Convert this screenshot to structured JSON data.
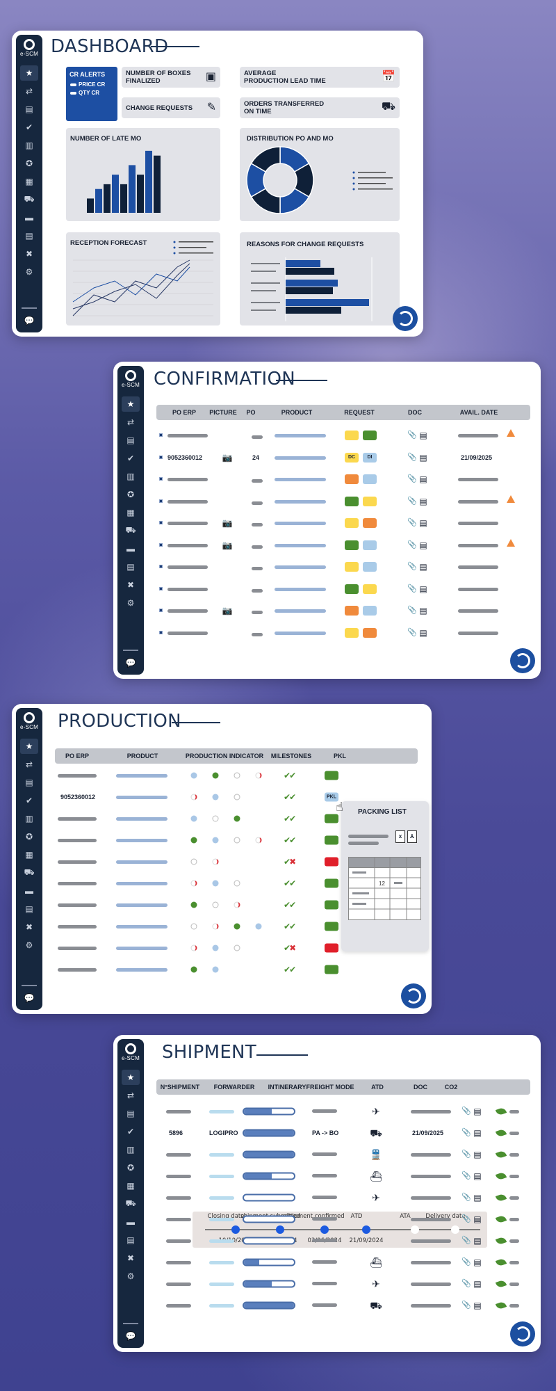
{
  "brand": {
    "logo_text": "e-SCM"
  },
  "dashboard": {
    "title": "DASHBOARD",
    "cr_alerts": {
      "title": "CR ALERTS",
      "items": [
        "PRICE CR",
        "QTY CR"
      ]
    },
    "kpis": [
      {
        "label": "NUMBER OF BOXES\nFINALIZED",
        "icon": "boxes-icon"
      },
      {
        "label": "AVERAGE\nPRODUCTION LEAD TIME",
        "icon": "calendar-clock-icon"
      },
      {
        "label": "CHANGE REQUESTS",
        "icon": "edit-icon"
      },
      {
        "label": "ORDERS TRANSFERRED\nON TIME",
        "icon": "delivery-truck-icon"
      }
    ],
    "charts": {
      "late_mo": {
        "title": "NUMBER OF LATE MO",
        "type": "bar",
        "values": [
          3,
          5,
          6,
          8,
          6,
          10,
          8,
          13,
          12
        ],
        "colors": [
          "#0f2038",
          "#1d4fa3"
        ]
      },
      "distribution": {
        "title": "DISTRIBUTION PO AND MO",
        "type": "pie",
        "slices": [
          1,
          1,
          1,
          1,
          1,
          1
        ],
        "colors": [
          "#1d4fa3",
          "#0f2038"
        ]
      },
      "reception": {
        "title": "RECEPTION FORECAST",
        "type": "line"
      },
      "reasons": {
        "title": "REASONS FOR CHANGE REQUESTS",
        "type": "bar",
        "values": [
          [
            50,
            70
          ],
          [
            75,
            68
          ],
          [
            120,
            80
          ]
        ]
      }
    }
  },
  "confirmation": {
    "title": "CONFIRMATION",
    "columns": [
      "PO ERP",
      "PICTURE",
      "PO",
      "PRODUCT",
      "REQUEST",
      "DOC",
      "AVAIL. DATE"
    ],
    "rows": [
      {
        "po_erp": "",
        "picture": false,
        "po": "",
        "request": [
          "#fbd84e",
          "#4a8f2f"
        ],
        "alert": true
      },
      {
        "po_erp": "9052360012",
        "picture": true,
        "po": "24",
        "request_labels": [
          "DC",
          "DI"
        ],
        "request": [
          "#fbd84e",
          "#a9cbe8"
        ],
        "avail": "21/09/2025",
        "alert": false
      },
      {
        "po_erp": "",
        "picture": false,
        "po": "",
        "request": [
          "#f08a3c",
          "#a9cbe8"
        ],
        "alert": false
      },
      {
        "po_erp": "",
        "picture": false,
        "po": "",
        "request": [
          "#4a8f2f",
          "#fbd84e"
        ],
        "alert": true
      },
      {
        "po_erp": "",
        "picture": true,
        "po": "",
        "request": [
          "#fbd84e",
          "#f08a3c"
        ],
        "alert": false
      },
      {
        "po_erp": "",
        "picture": true,
        "po": "",
        "request": [
          "#4a8f2f",
          "#a9cbe8"
        ],
        "alert": true
      },
      {
        "po_erp": "",
        "picture": false,
        "po": "",
        "request": [
          "#fbd84e",
          "#a9cbe8"
        ],
        "alert": false
      },
      {
        "po_erp": "",
        "picture": false,
        "po": "",
        "request": [
          "#4a8f2f",
          "#fbd84e"
        ],
        "alert": false
      },
      {
        "po_erp": "",
        "picture": true,
        "po": "",
        "request": [
          "#f08a3c",
          "#a9cbe8"
        ],
        "alert": false
      },
      {
        "po_erp": "",
        "picture": false,
        "po": "",
        "request": [
          "#fbd84e",
          "#f08a3c"
        ],
        "alert": false
      }
    ]
  },
  "production": {
    "title": "PRODUCTION",
    "columns": [
      "PO ERP",
      "PRODUCT",
      "PRODUCTION INDICATOR",
      "MILESTONES",
      "PKL"
    ],
    "rows": [
      {
        "po_erp": "",
        "dots": [
          "b",
          "g",
          "w",
          "r"
        ],
        "milestones": [
          "ok",
          "ok"
        ],
        "pkl": "green"
      },
      {
        "po_erp": "9052360012",
        "dots": [
          "r",
          "b",
          "w"
        ],
        "milestones": [
          "ok",
          "ok"
        ],
        "pkl": "active",
        "pkl_label": "PKL"
      },
      {
        "po_erp": "",
        "dots": [
          "b",
          "w",
          "g"
        ],
        "milestones": [
          "ok",
          "ok"
        ],
        "pkl": "green"
      },
      {
        "po_erp": "",
        "dots": [
          "g",
          "b",
          "w",
          "r"
        ],
        "milestones": [
          "ok",
          "ok"
        ],
        "pkl": "green"
      },
      {
        "po_erp": "",
        "dots": [
          "w",
          "r"
        ],
        "milestones": [
          "ok",
          "ko"
        ],
        "pkl": "red"
      },
      {
        "po_erp": "",
        "dots": [
          "r",
          "b",
          "w"
        ],
        "milestones": [
          "ok",
          "ok"
        ],
        "pkl": "green"
      },
      {
        "po_erp": "",
        "dots": [
          "g",
          "w",
          "r"
        ],
        "milestones": [
          "ok",
          "ok"
        ],
        "pkl": "green"
      },
      {
        "po_erp": "",
        "dots": [
          "w",
          "r",
          "g",
          "b"
        ],
        "milestones": [
          "ok",
          "ok"
        ],
        "pkl": "green"
      },
      {
        "po_erp": "",
        "dots": [
          "r",
          "b",
          "w"
        ],
        "milestones": [
          "ok",
          "ko"
        ],
        "pkl": "red"
      },
      {
        "po_erp": "",
        "dots": [
          "g",
          "b"
        ],
        "milestones": [
          "ok",
          "ok"
        ],
        "pkl": "green"
      }
    ],
    "packing_list": {
      "title": "PACKING LIST",
      "cell_value": "12"
    }
  },
  "shipment": {
    "title": "SHIPMENT",
    "columns": [
      "N°SHIPMENT",
      "FORWARDER",
      "INTINERARY",
      "FREIGHT MODE",
      "ATD",
      "DOC",
      "CO2"
    ],
    "rows": [
      {
        "shipment": "",
        "forwarder": "",
        "progress": 0.55,
        "itinerary": "",
        "mode": "✈",
        "atd": ""
      },
      {
        "shipment": "5896",
        "forwarder": "LOGIPRO",
        "progress": 1.0,
        "itinerary": "PA -> BO",
        "mode": "⛟",
        "atd": "21/09/2025"
      },
      {
        "shipment": "",
        "forwarder": "",
        "progress": 1.0,
        "itinerary": "",
        "mode": "🚆",
        "atd": ""
      },
      {
        "shipment": "",
        "forwarder": "",
        "progress": 0.55,
        "itinerary": "",
        "mode": "⛴",
        "atd": ""
      },
      {
        "shipment": "",
        "forwarder": "",
        "progress": 0.0,
        "itinerary": "",
        "mode": "✈",
        "atd": ""
      },
      {
        "shipment": "",
        "forwarder": "",
        "progress": 0.0,
        "itinerary": "",
        "mode": "",
        "atd": ""
      },
      {
        "shipment": "",
        "forwarder": "",
        "progress": 0.0,
        "itinerary": "",
        "mode": "",
        "atd": ""
      },
      {
        "shipment": "",
        "forwarder": "",
        "progress": 0.3,
        "itinerary": "",
        "mode": "⛴",
        "atd": ""
      },
      {
        "shipment": "",
        "forwarder": "",
        "progress": 0.55,
        "itinerary": "",
        "mode": "✈",
        "atd": ""
      },
      {
        "shipment": "",
        "forwarder": "",
        "progress": 1.0,
        "itinerary": "",
        "mode": "⛟",
        "atd": ""
      }
    ],
    "timeline": {
      "steps": [
        {
          "label": "Closing date",
          "date": "10/10/2024",
          "done": true
        },
        {
          "label": "shipment submitted",
          "date": "03/03/2024",
          "done": true
        },
        {
          "label": "shipment confirmed",
          "date": "03/06/2024",
          "done": true
        },
        {
          "label": "ATD",
          "date": "21/09/2024",
          "done": true
        },
        {
          "label": "ATA",
          "date": "",
          "done": false
        },
        {
          "label": "Delivery date",
          "date": "",
          "done": false
        }
      ]
    }
  }
}
